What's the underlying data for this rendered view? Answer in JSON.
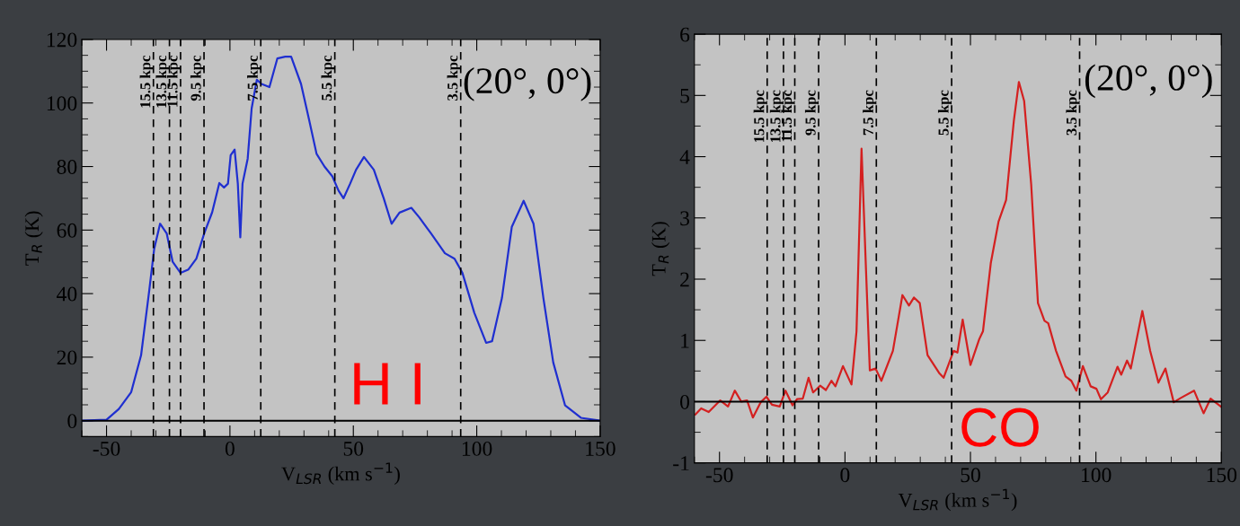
{
  "chart_data": [
    {
      "type": "line",
      "xlabel": "V$_{LSR}$ (km s$^{−1}$)",
      "ylabel": "T$_{R}$ (K)",
      "annotations": [
        "(20°, 0°)",
        "H I"
      ],
      "xlim": [
        -60,
        150
      ],
      "xticks": [
        -50,
        0,
        50,
        100,
        150
      ],
      "ylim": [
        -5,
        120
      ],
      "yticks": [
        0,
        20,
        40,
        60,
        80,
        100,
        120
      ],
      "grid": false,
      "legend": false,
      "marker": "none",
      "line_style": "solid",
      "ref_lines": [
        {
          "axis": "y",
          "value": 0,
          "label": null,
          "color": "#000000",
          "line_style": "solid"
        },
        {
          "axis": "x",
          "value": -31,
          "label": "15.5 kpc",
          "color": "#000000",
          "line_style": "dashed"
        },
        {
          "axis": "x",
          "value": -24.5,
          "label": "13.5 kpc",
          "color": "#000000",
          "line_style": "dashed"
        },
        {
          "axis": "x",
          "value": -20,
          "label": "11.5 kpc",
          "color": "#000000",
          "line_style": "dashed"
        },
        {
          "axis": "x",
          "value": -10.5,
          "label": "9.5 kpc",
          "color": "#000000",
          "line_style": "dashed"
        },
        {
          "axis": "x",
          "value": 12.5,
          "label": "7.5 kpc",
          "color": "#000000",
          "line_style": "dashed"
        },
        {
          "axis": "x",
          "value": 42.5,
          "label": "5.5 kpc",
          "color": "#000000",
          "line_style": "dashed"
        },
        {
          "axis": "x",
          "value": 93.5,
          "label": "3.5 kpc",
          "color": "#000000",
          "line_style": "dashed"
        }
      ],
      "series": [
        {
          "color": "#1f2fd0",
          "x": [
            -60,
            -50,
            -45,
            -40,
            -36,
            -32.7,
            -30.7,
            -28.3,
            -25.6,
            -23.2,
            -20,
            -16.8,
            -13.6,
            -10.4,
            -7.2,
            -4.3,
            -2.4,
            -0.8,
            0.3,
            1.9,
            3.2,
            4.2,
            5.1,
            7.2,
            8.8,
            10.9,
            12.8,
            16,
            19.2,
            22.4,
            24.8,
            28.8,
            32,
            35.1,
            38.3,
            41.5,
            44,
            46,
            48.7,
            51.1,
            54.3,
            58.3,
            62.3,
            65.5,
            68.7,
            73.5,
            76.7,
            81.5,
            87.1,
            91,
            94.2,
            99,
            103.8,
            106.2,
            110.2,
            114.2,
            119,
            123,
            127,
            131,
            135.8,
            142.2,
            150
          ],
          "values": [
            0,
            0.3,
            3.7,
            9,
            20.6,
            40.9,
            54,
            62,
            58.9,
            50,
            46.5,
            47.6,
            51,
            59,
            65.6,
            74.8,
            73.4,
            74.6,
            83.6,
            85.3,
            74.6,
            57.7,
            74.6,
            82.5,
            98.3,
            107.3,
            106,
            105,
            114,
            114.6,
            114.6,
            106,
            95,
            84,
            80,
            76.9,
            72.4,
            70,
            74.6,
            79,
            83,
            79,
            70,
            62,
            65.5,
            67,
            64,
            58.9,
            52.7,
            51,
            46.5,
            34,
            24.5,
            25,
            38.6,
            61,
            69.2,
            62,
            38.6,
            18.3,
            4.8,
            0.9,
            0
          ]
        }
      ]
    },
    {
      "type": "line",
      "xlabel": "V$_{LSR}$ (km s$^{−1}$)",
      "ylabel": "T$_{R}$ (K)",
      "annotations": [
        "(20°, 0°)",
        "CO"
      ],
      "xlim": [
        -60,
        150
      ],
      "xticks": [
        -50,
        0,
        50,
        100,
        150
      ],
      "ylim": [
        -1,
        6
      ],
      "yticks": [
        -1,
        0,
        1,
        2,
        3,
        4,
        5,
        6
      ],
      "grid": false,
      "legend": false,
      "marker": "none",
      "line_style": "solid",
      "ref_lines": [
        {
          "axis": "y",
          "value": 0,
          "label": null,
          "color": "#000000",
          "line_style": "solid"
        },
        {
          "axis": "x",
          "value": -31,
          "label": "15.5 kpc",
          "color": "#000000",
          "line_style": "dashed"
        },
        {
          "axis": "x",
          "value": -24.5,
          "label": "13.5 kpc",
          "color": "#000000",
          "line_style": "dashed"
        },
        {
          "axis": "x",
          "value": -20,
          "label": "11.5 kpc",
          "color": "#000000",
          "line_style": "dashed"
        },
        {
          "axis": "x",
          "value": -10.5,
          "label": "9.5 kpc",
          "color": "#000000",
          "line_style": "dashed"
        },
        {
          "axis": "x",
          "value": 12.5,
          "label": "7.5 kpc",
          "color": "#000000",
          "line_style": "dashed"
        },
        {
          "axis": "x",
          "value": 42.5,
          "label": "5.5 kpc",
          "color": "#000000",
          "line_style": "dashed"
        },
        {
          "axis": "x",
          "value": 93.5,
          "label": "3.5 kpc",
          "color": "#000000",
          "line_style": "dashed"
        }
      ],
      "series": [
        {
          "color": "#d42020",
          "x": [
            -59.6,
            -57.3,
            -54.3,
            -49.7,
            -46.6,
            -43.9,
            -41.3,
            -39,
            -36.7,
            -33.6,
            -31.3,
            -29.1,
            -26,
            -23.7,
            -20.9,
            -19.1,
            -16.8,
            -14.5,
            -12.7,
            -9.9,
            -7.6,
            -5.4,
            -3.8,
            -0.8,
            2.6,
            4.6,
            6.6,
            8.4,
            9.9,
            12.2,
            14.5,
            19.1,
            22.9,
            25.5,
            27.5,
            29.8,
            32.9,
            37.5,
            39.3,
            43.3,
            44.8,
            46.9,
            50,
            53.5,
            55,
            58.1,
            61.2,
            64.2,
            67.3,
            69.3,
            71.4,
            74.2,
            76.9,
            79.5,
            81,
            84.1,
            87.9,
            90.2,
            92.2,
            94.8,
            97.9,
            100.2,
            102,
            104.7,
            108.6,
            110.1,
            112.4,
            113.9,
            118.5,
            121.6,
            124.9,
            127.7,
            131,
            133.8,
            139.1,
            142.9,
            145.7,
            149.8
          ],
          "values": [
            -0.21,
            -0.11,
            -0.17,
            0.02,
            -0.08,
            0.18,
            0,
            0.02,
            -0.26,
            -0.01,
            0.08,
            -0.05,
            -0.08,
            0.18,
            -0.06,
            0.04,
            0.05,
            0.39,
            0.15,
            0.26,
            0.19,
            0.34,
            0.25,
            0.58,
            0.28,
            1.15,
            4.13,
            2.13,
            0.51,
            0.54,
            0.34,
            0.83,
            1.74,
            1.57,
            1.7,
            1.61,
            0.76,
            0.47,
            0.39,
            0.83,
            0.8,
            1.34,
            0.6,
            1.02,
            1.15,
            2.26,
            2.94,
            3.29,
            4.59,
            5.22,
            4.91,
            3.55,
            1.61,
            1.32,
            1.28,
            0.83,
            0.41,
            0.34,
            0.18,
            0.58,
            0.25,
            0.21,
            0.04,
            0.15,
            0.57,
            0.44,
            0.67,
            0.54,
            1.48,
            0.83,
            0.31,
            0.54,
            -0.01,
            0.06,
            0.18,
            -0.19,
            0.05,
            -0.08
          ]
        }
      ]
    }
  ]
}
